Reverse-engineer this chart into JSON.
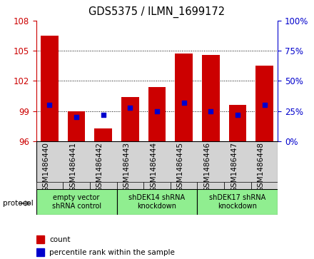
{
  "title": "GDS5375 / ILMN_1699172",
  "samples": [
    "GSM1486440",
    "GSM1486441",
    "GSM1486442",
    "GSM1486443",
    "GSM1486444",
    "GSM1486445",
    "GSM1486446",
    "GSM1486447",
    "GSM1486448"
  ],
  "counts": [
    106.5,
    99.0,
    97.3,
    100.4,
    101.4,
    104.7,
    104.6,
    99.6,
    103.5
  ],
  "percentile_ranks": [
    30,
    20,
    22,
    28,
    25,
    32,
    25,
    22,
    30
  ],
  "y_min": 96,
  "y_max": 108,
  "y_ticks": [
    96,
    99,
    102,
    105,
    108
  ],
  "right_y_ticks": [
    0,
    25,
    50,
    75,
    100
  ],
  "right_y_tick_labels": [
    "0%",
    "25%",
    "50%",
    "75%",
    "100%"
  ],
  "group_labels": [
    "empty vector\nshRNA control",
    "shDEK14 shRNA\nknockdown",
    "shDEK17 shRNA\nknockdown"
  ],
  "group_ranges": [
    [
      0,
      3
    ],
    [
      3,
      6
    ],
    [
      6,
      9
    ]
  ],
  "group_color": "#90ee90",
  "bar_color": "#cc0000",
  "dot_color": "#0000cc",
  "bar_bottom": 96,
  "legend_count_label": "count",
  "legend_pct_label": "percentile rank within the sample",
  "protocol_label": "protocol",
  "tick_color_left": "#cc0000",
  "tick_color_right": "#0000cc",
  "sample_box_color": "#d3d3d3",
  "bg_color": "#ffffff"
}
